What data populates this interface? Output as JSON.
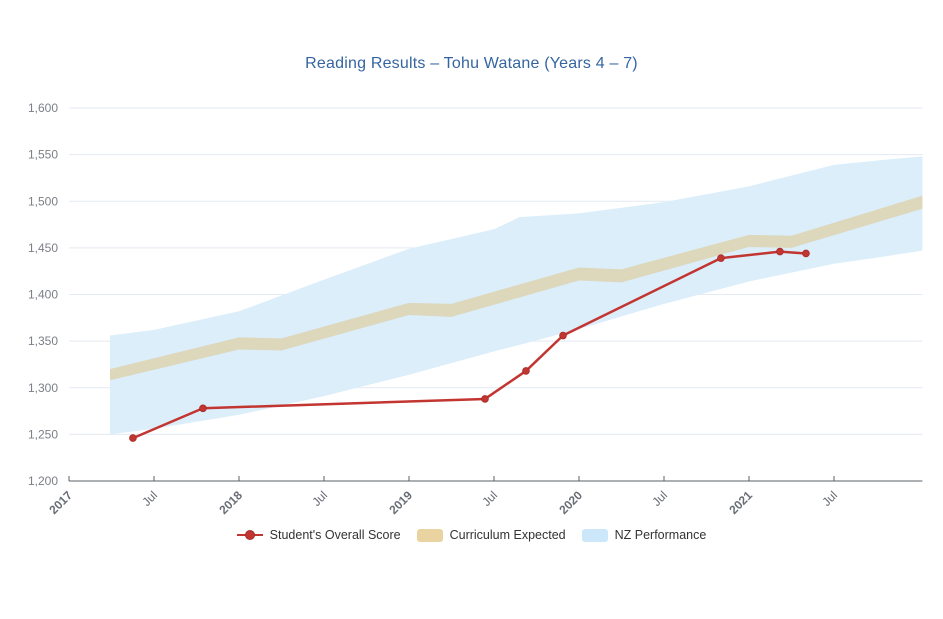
{
  "title": "Reading Results – Tohu Watane (Years 4 – 7)",
  "colors": {
    "title": "#3565a0",
    "student_line": "#c23531",
    "curriculum_band_fill": "#ddd7bc",
    "curriculum_legend": "#e9d3a0",
    "nz_band_fill": "#dbeefa",
    "nz_legend": "#cbe7f9",
    "gridline": "#e3eaf2",
    "axis_line": "#5b6066",
    "y_label": "#7b7f86",
    "x_label": "#696d75"
  },
  "legend": {
    "items": [
      {
        "label": "Student's Overall Score",
        "slug": "student-overall-score",
        "marker": "line-dot",
        "color": "#c23531"
      },
      {
        "label": "Curriculum Expected",
        "slug": "curriculum-expected",
        "marker": "band",
        "color": "#e9d3a0"
      },
      {
        "label": "NZ Performance",
        "slug": "nz-performance",
        "marker": "band",
        "color": "#cbe7f9"
      }
    ]
  },
  "chart_data": {
    "type": "line",
    "title": "Reading Results – Tohu Watane (Years 4 – 7)",
    "grid": true,
    "legend_position": "bottom",
    "x_axis": {
      "unit": "t = years since Jan 2017",
      "t_max": 5.02,
      "label_ticks": [
        {
          "label": "2017",
          "t": 0,
          "bold": true
        },
        {
          "label": "Jul",
          "t": 0.5,
          "bold": false
        },
        {
          "label": "2018",
          "t": 1,
          "bold": true
        },
        {
          "label": "Jul",
          "t": 1.5,
          "bold": false
        },
        {
          "label": "2019",
          "t": 2,
          "bold": true
        },
        {
          "label": "Jul",
          "t": 2.5,
          "bold": false
        },
        {
          "label": "2020",
          "t": 3,
          "bold": true
        },
        {
          "label": "Jul",
          "t": 3.5,
          "bold": false
        },
        {
          "label": "2021",
          "t": 4,
          "bold": true
        },
        {
          "label": "Jul",
          "t": 4.5,
          "bold": false
        }
      ]
    },
    "y_axis": {
      "min": 1200,
      "max": 1600,
      "step": 50,
      "ticks": [
        {
          "v": 1200,
          "label": "1,200"
        },
        {
          "v": 1250,
          "label": "1,250"
        },
        {
          "v": 1300,
          "label": "1,300"
        },
        {
          "v": 1350,
          "label": "1,350"
        },
        {
          "v": 1400,
          "label": "1,400"
        },
        {
          "v": 1450,
          "label": "1,450"
        },
        {
          "v": 1500,
          "label": "1,500"
        },
        {
          "v": 1550,
          "label": "1,550"
        },
        {
          "v": 1600,
          "label": "1,600"
        }
      ]
    },
    "series": [
      {
        "name": "Student's Overall Score",
        "type": "line",
        "color": "#c23531",
        "points": [
          {
            "t": 0.376,
            "date": "May 2017",
            "value": 1246
          },
          {
            "t": 0.788,
            "date": "Oct 2017",
            "value": 1278
          },
          {
            "t": 2.447,
            "date": "Jun 2019",
            "value": 1288
          },
          {
            "t": 2.688,
            "date": "Sep 2019",
            "value": 1318
          },
          {
            "t": 2.906,
            "date": "Nov 2019",
            "value": 1356
          },
          {
            "t": 3.835,
            "date": "Nov 2020",
            "value": 1439
          },
          {
            "t": 4.182,
            "date": "Mar 2021",
            "value": 1446
          },
          {
            "t": 4.335,
            "date": "May 2021",
            "value": 1444
          }
        ]
      },
      {
        "name": "Curriculum Expected",
        "type": "band",
        "color": "#e9d3a0",
        "fill": "#ddd7bc",
        "points": [
          {
            "t": 0.241,
            "top": 1320,
            "bottom": 1308
          },
          {
            "t": 1.0,
            "top": 1354,
            "bottom": 1341
          },
          {
            "t": 1.25,
            "top": 1353,
            "bottom": 1340
          },
          {
            "t": 2.0,
            "top": 1391,
            "bottom": 1378
          },
          {
            "t": 2.25,
            "top": 1390,
            "bottom": 1376
          },
          {
            "t": 3.0,
            "top": 1429,
            "bottom": 1415
          },
          {
            "t": 3.25,
            "top": 1427,
            "bottom": 1413
          },
          {
            "t": 4.0,
            "top": 1464,
            "bottom": 1451
          },
          {
            "t": 4.25,
            "top": 1463,
            "bottom": 1450
          },
          {
            "t": 5.02,
            "top": 1506,
            "bottom": 1492
          }
        ]
      },
      {
        "name": "NZ Performance",
        "type": "band",
        "color": "#cbe7f9",
        "fill": "#dbeefa",
        "points": [
          {
            "t": 0.241,
            "top": 1356,
            "bottom": 1250
          },
          {
            "t": 0.5,
            "top": 1362,
            "bottom": 1256
          },
          {
            "t": 1.0,
            "top": 1382,
            "bottom": 1271
          },
          {
            "t": 1.5,
            "top": 1416,
            "bottom": 1291
          },
          {
            "t": 2.0,
            "top": 1449,
            "bottom": 1314
          },
          {
            "t": 2.5,
            "top": 1470,
            "bottom": 1339
          },
          {
            "t": 2.65,
            "top": 1483,
            "bottom": 1346
          },
          {
            "t": 3.0,
            "top": 1487,
            "bottom": 1363
          },
          {
            "t": 3.5,
            "top": 1499,
            "bottom": 1390
          },
          {
            "t": 4.0,
            "top": 1516,
            "bottom": 1414
          },
          {
            "t": 4.5,
            "top": 1539,
            "bottom": 1433
          },
          {
            "t": 4.77,
            "top": 1544,
            "bottom": 1440
          },
          {
            "t": 5.02,
            "top": 1548,
            "bottom": 1447
          }
        ]
      }
    ]
  }
}
